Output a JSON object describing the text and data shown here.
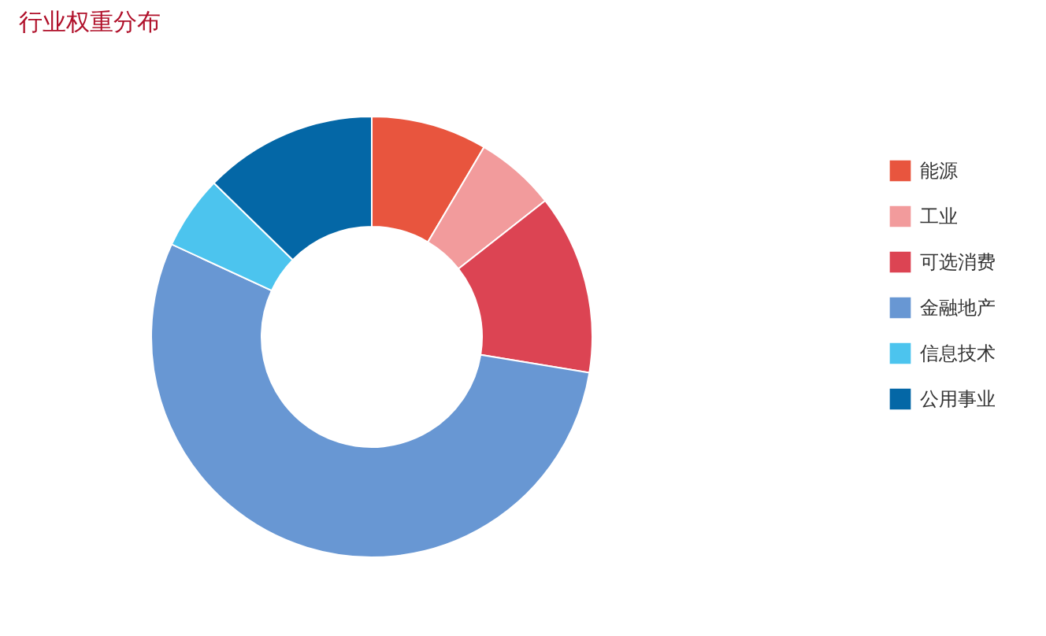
{
  "chart_data": {
    "type": "donut",
    "title": "行业权重分布",
    "categories": [
      "能源",
      "工业",
      "可选消费",
      "金融地产",
      "信息技术",
      "公用事业"
    ],
    "values": [
      8.5,
      5.9,
      13.2,
      54.3,
      5.4,
      12.7
    ],
    "colors": [
      "#e8553e",
      "#f29b9c",
      "#dc4453",
      "#6897d3",
      "#4cc4ee",
      "#0467a6"
    ],
    "legend": "right"
  }
}
